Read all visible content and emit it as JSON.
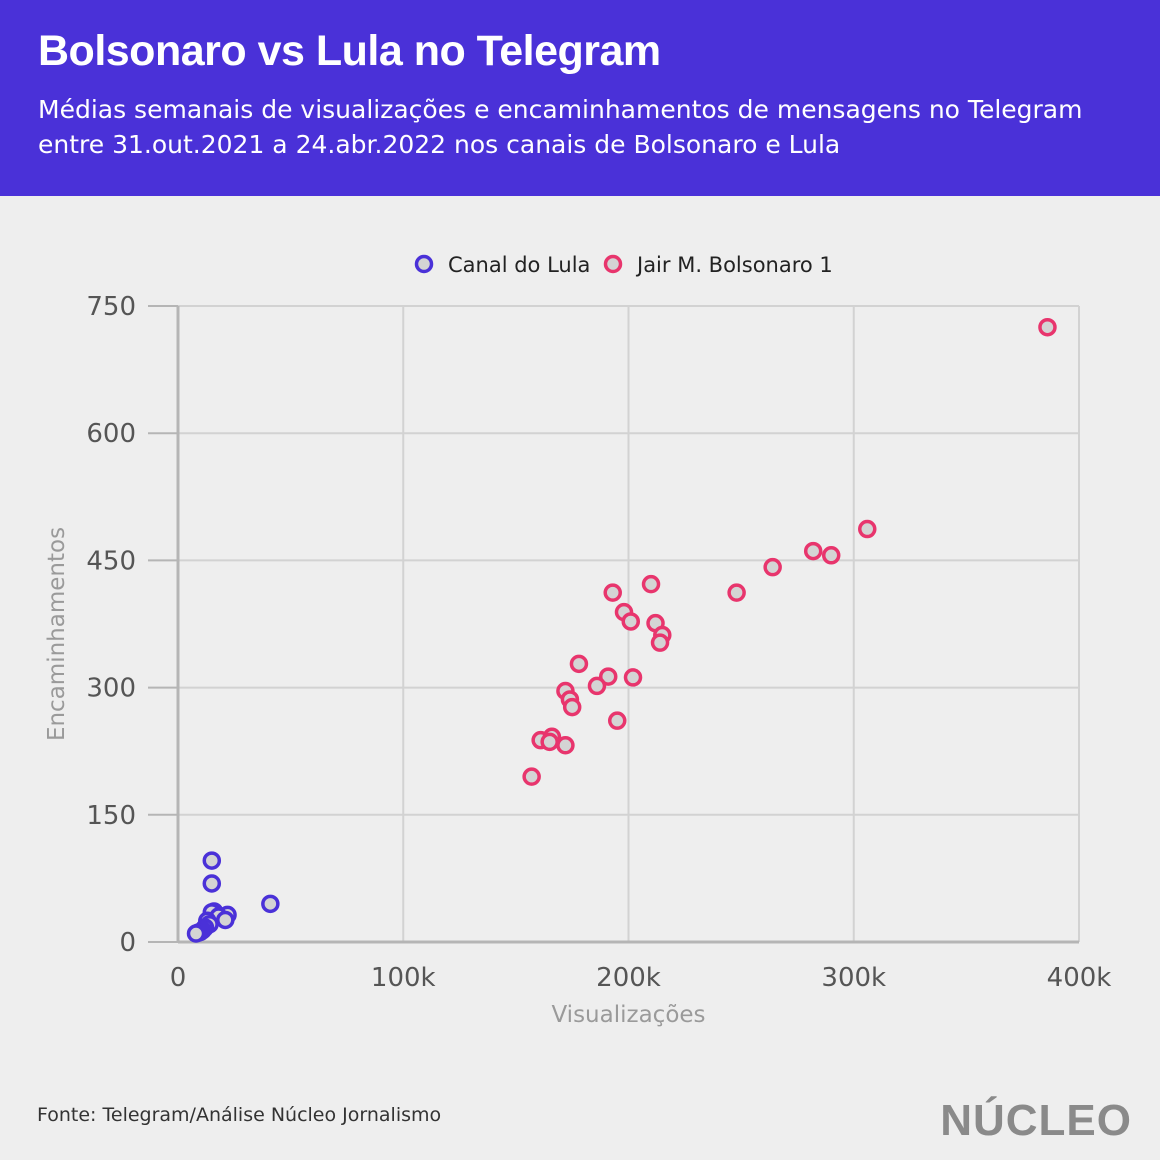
{
  "header": {
    "title": "Bolsonaro vs Lula no Telegram",
    "subtitle": "Médias semanais de visualizações e encaminhamentos de mensagens no Telegram entre 31.out.2021 a 24.abr.2022 nos canais de Bolsonaro e Lula"
  },
  "footer": {
    "source": "Fonte: Telegram/Análise Núcleo Jornalismo",
    "logo": "NÚCLEO"
  },
  "colors": {
    "header_bg": "#4a31d8",
    "lula": "#4a31d8",
    "bolsonaro": "#e8356d",
    "marker_fill": "#d4d4d4"
  },
  "chart_data": {
    "type": "scatter",
    "xlabel": "Visualizações",
    "ylabel": "Encaminhamentos",
    "xlim": [
      0,
      400000
    ],
    "ylim": [
      0,
      750
    ],
    "xticks": [
      0,
      100000,
      200000,
      300000,
      400000
    ],
    "xtick_labels": [
      "0",
      "100k",
      "200k",
      "300k",
      "400k"
    ],
    "yticks": [
      0,
      150,
      300,
      450,
      600,
      750
    ],
    "ytick_labels": [
      "0",
      "150",
      "300",
      "450",
      "600",
      "750"
    ],
    "grid": true,
    "legend_position": "top-center",
    "series": [
      {
        "name": "Canal do Lula",
        "color": "#4a31d8",
        "points": [
          [
            15000,
            96
          ],
          [
            15000,
            69
          ],
          [
            41000,
            45
          ],
          [
            22000,
            32
          ],
          [
            16000,
            36
          ],
          [
            15000,
            35
          ],
          [
            18000,
            30
          ],
          [
            21000,
            26
          ],
          [
            13000,
            25
          ],
          [
            14000,
            21
          ],
          [
            12000,
            17
          ],
          [
            11000,
            14
          ],
          [
            10000,
            12
          ],
          [
            9000,
            11
          ],
          [
            8000,
            10
          ]
        ]
      },
      {
        "name": "Jair M. Bolsonaro 1",
        "color": "#e8356d",
        "points": [
          [
            386000,
            725
          ],
          [
            306000,
            487
          ],
          [
            282000,
            461
          ],
          [
            290000,
            456
          ],
          [
            264000,
            442
          ],
          [
            210000,
            422
          ],
          [
            193000,
            412
          ],
          [
            248000,
            412
          ],
          [
            198000,
            389
          ],
          [
            201000,
            378
          ],
          [
            212000,
            376
          ],
          [
            215000,
            362
          ],
          [
            214000,
            353
          ],
          [
            178000,
            328
          ],
          [
            202000,
            312
          ],
          [
            191000,
            313
          ],
          [
            186000,
            302
          ],
          [
            172000,
            296
          ],
          [
            174000,
            286
          ],
          [
            175000,
            277
          ],
          [
            195000,
            261
          ],
          [
            161000,
            238
          ],
          [
            166000,
            242
          ],
          [
            165000,
            236
          ],
          [
            172000,
            232
          ],
          [
            157000,
            195
          ]
        ]
      }
    ]
  }
}
